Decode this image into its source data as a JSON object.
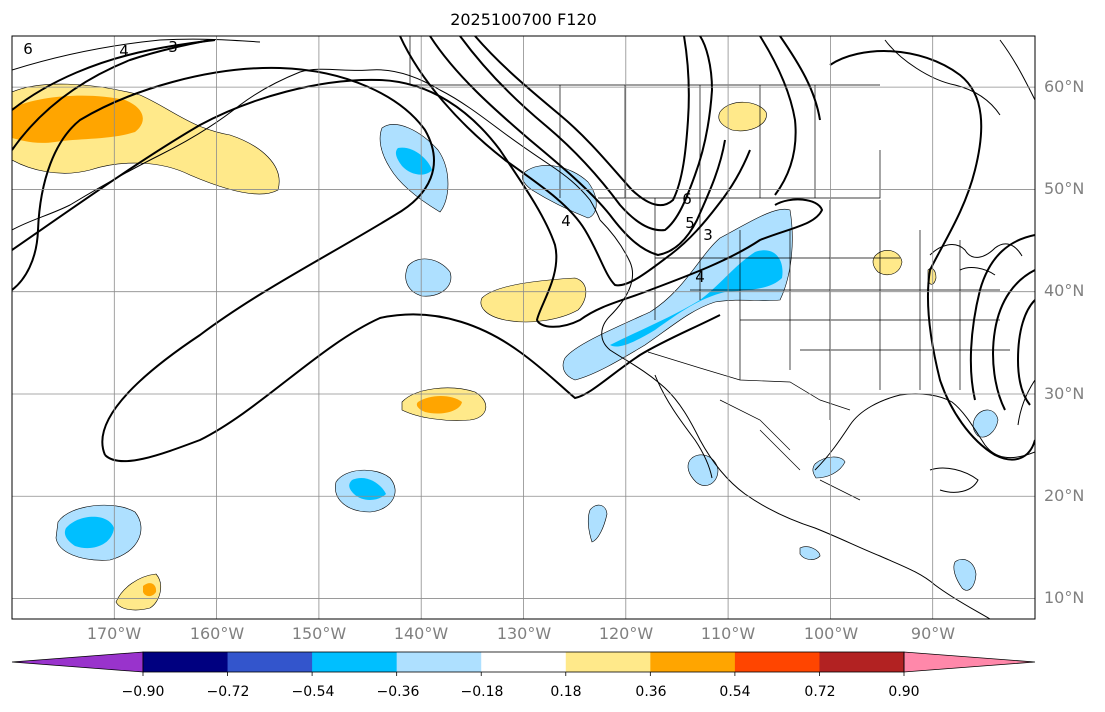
{
  "title": "2025100700 F120",
  "map": {
    "lon_range": [
      -180,
      -80
    ],
    "lat_range": [
      8,
      65
    ],
    "lat_labels": [
      "60°N",
      "50°N",
      "40°N",
      "30°N",
      "20°N",
      "10°N"
    ],
    "lon_labels": [
      "170°W",
      "160°W",
      "150°W",
      "140°W",
      "130°W",
      "120°W",
      "110°W",
      "100°W",
      "90°W"
    ],
    "contour_labels": [
      "6",
      "4",
      "3",
      "4",
      "6",
      "5",
      "4",
      "3"
    ]
  },
  "colorbar": {
    "colors": [
      "#9933cc",
      "#000080",
      "#3355cc",
      "#00bfff",
      "#aee0ff",
      "#ffffff",
      "#ffe98a",
      "#ffa500",
      "#ff4500",
      "#b22222",
      "#ff88aa"
    ],
    "tick_labels": [
      "−0.90",
      "−0.72",
      "−0.54",
      "−0.36",
      "−0.18",
      "0.18",
      "0.36",
      "0.54",
      "0.72",
      "0.90"
    ]
  }
}
